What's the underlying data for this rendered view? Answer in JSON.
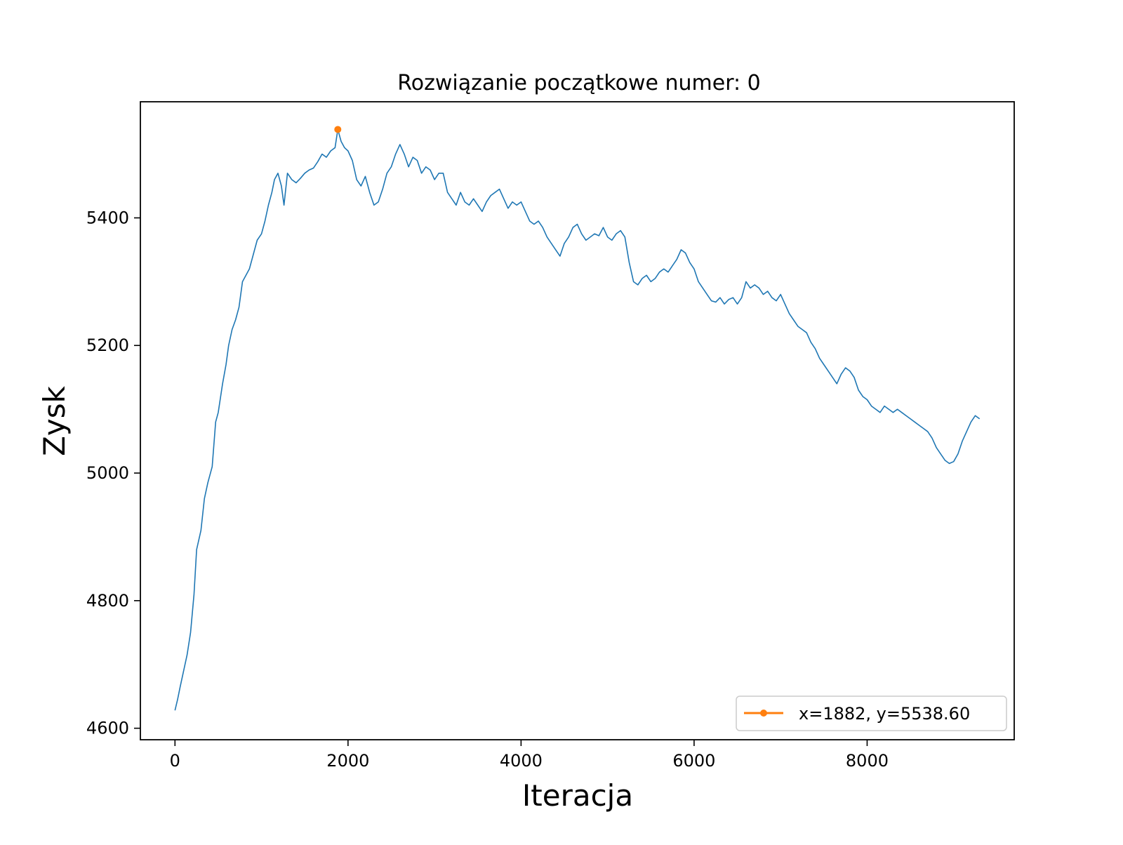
{
  "chart_data": {
    "type": "line",
    "title": "Rozwiązanie początkowe numer: 0",
    "xlabel": "Iteracja",
    "ylabel": "Zysk",
    "xlim": [
      -400,
      9700
    ],
    "ylim": [
      4582,
      5582
    ],
    "x_ticks": [
      0,
      2000,
      4000,
      6000,
      8000
    ],
    "y_ticks": [
      4600,
      4800,
      5000,
      5200,
      5400
    ],
    "grid": false,
    "legend_position": "lower-right",
    "colors": {
      "series": "#1f77b4",
      "marker": "#ff7f0e"
    },
    "series": [
      {
        "name": "",
        "color": "#1f77b4",
        "points": [
          [
            0,
            4628
          ],
          [
            30,
            4645
          ],
          [
            60,
            4665
          ],
          [
            100,
            4690
          ],
          [
            140,
            4715
          ],
          [
            180,
            4750
          ],
          [
            220,
            4810
          ],
          [
            250,
            4880
          ],
          [
            300,
            4910
          ],
          [
            340,
            4960
          ],
          [
            380,
            4985
          ],
          [
            430,
            5010
          ],
          [
            470,
            5080
          ],
          [
            500,
            5095
          ],
          [
            550,
            5140
          ],
          [
            590,
            5170
          ],
          [
            620,
            5200
          ],
          [
            660,
            5225
          ],
          [
            700,
            5240
          ],
          [
            740,
            5260
          ],
          [
            780,
            5300
          ],
          [
            820,
            5310
          ],
          [
            860,
            5320
          ],
          [
            900,
            5340
          ],
          [
            950,
            5365
          ],
          [
            1000,
            5375
          ],
          [
            1040,
            5395
          ],
          [
            1080,
            5420
          ],
          [
            1120,
            5440
          ],
          [
            1150,
            5460
          ],
          [
            1190,
            5470
          ],
          [
            1230,
            5450
          ],
          [
            1260,
            5420
          ],
          [
            1300,
            5470
          ],
          [
            1350,
            5460
          ],
          [
            1400,
            5455
          ],
          [
            1450,
            5462
          ],
          [
            1500,
            5470
          ],
          [
            1550,
            5475
          ],
          [
            1600,
            5478
          ],
          [
            1650,
            5488
          ],
          [
            1700,
            5500
          ],
          [
            1750,
            5495
          ],
          [
            1800,
            5505
          ],
          [
            1850,
            5510
          ],
          [
            1882,
            5538.6
          ],
          [
            1920,
            5520
          ],
          [
            1960,
            5510
          ],
          [
            2000,
            5505
          ],
          [
            2050,
            5490
          ],
          [
            2100,
            5460
          ],
          [
            2150,
            5450
          ],
          [
            2200,
            5465
          ],
          [
            2250,
            5440
          ],
          [
            2300,
            5420
          ],
          [
            2350,
            5425
          ],
          [
            2400,
            5445
          ],
          [
            2450,
            5470
          ],
          [
            2500,
            5480
          ],
          [
            2550,
            5500
          ],
          [
            2600,
            5515
          ],
          [
            2650,
            5500
          ],
          [
            2700,
            5480
          ],
          [
            2750,
            5495
          ],
          [
            2800,
            5490
          ],
          [
            2850,
            5470
          ],
          [
            2900,
            5480
          ],
          [
            2950,
            5475
          ],
          [
            3000,
            5460
          ],
          [
            3050,
            5470
          ],
          [
            3100,
            5470
          ],
          [
            3150,
            5440
          ],
          [
            3200,
            5430
          ],
          [
            3250,
            5420
          ],
          [
            3300,
            5440
          ],
          [
            3350,
            5425
          ],
          [
            3400,
            5420
          ],
          [
            3450,
            5430
          ],
          [
            3500,
            5420
          ],
          [
            3550,
            5410
          ],
          [
            3600,
            5425
          ],
          [
            3650,
            5435
          ],
          [
            3700,
            5440
          ],
          [
            3750,
            5445
          ],
          [
            3800,
            5430
          ],
          [
            3850,
            5415
          ],
          [
            3900,
            5425
          ],
          [
            3950,
            5420
          ],
          [
            4000,
            5425
          ],
          [
            4050,
            5410
          ],
          [
            4100,
            5395
          ],
          [
            4150,
            5390
          ],
          [
            4200,
            5395
          ],
          [
            4250,
            5385
          ],
          [
            4300,
            5370
          ],
          [
            4350,
            5360
          ],
          [
            4400,
            5350
          ],
          [
            4450,
            5340
          ],
          [
            4500,
            5360
          ],
          [
            4550,
            5370
          ],
          [
            4600,
            5385
          ],
          [
            4650,
            5390
          ],
          [
            4700,
            5375
          ],
          [
            4750,
            5365
          ],
          [
            4800,
            5370
          ],
          [
            4850,
            5375
          ],
          [
            4900,
            5372
          ],
          [
            4950,
            5385
          ],
          [
            5000,
            5370
          ],
          [
            5050,
            5365
          ],
          [
            5100,
            5375
          ],
          [
            5150,
            5380
          ],
          [
            5200,
            5370
          ],
          [
            5250,
            5330
          ],
          [
            5300,
            5300
          ],
          [
            5350,
            5295
          ],
          [
            5400,
            5305
          ],
          [
            5450,
            5310
          ],
          [
            5500,
            5300
          ],
          [
            5550,
            5305
          ],
          [
            5600,
            5315
          ],
          [
            5650,
            5320
          ],
          [
            5700,
            5315
          ],
          [
            5750,
            5325
          ],
          [
            5800,
            5335
          ],
          [
            5850,
            5350
          ],
          [
            5900,
            5345
          ],
          [
            5950,
            5330
          ],
          [
            6000,
            5320
          ],
          [
            6050,
            5300
          ],
          [
            6100,
            5290
          ],
          [
            6150,
            5280
          ],
          [
            6200,
            5270
          ],
          [
            6250,
            5268
          ],
          [
            6300,
            5275
          ],
          [
            6350,
            5265
          ],
          [
            6400,
            5272
          ],
          [
            6450,
            5275
          ],
          [
            6500,
            5265
          ],
          [
            6550,
            5275
          ],
          [
            6600,
            5300
          ],
          [
            6650,
            5290
          ],
          [
            6700,
            5295
          ],
          [
            6750,
            5290
          ],
          [
            6800,
            5280
          ],
          [
            6850,
            5285
          ],
          [
            6900,
            5275
          ],
          [
            6950,
            5270
          ],
          [
            7000,
            5280
          ],
          [
            7050,
            5265
          ],
          [
            7100,
            5250
          ],
          [
            7150,
            5240
          ],
          [
            7200,
            5230
          ],
          [
            7250,
            5225
          ],
          [
            7300,
            5220
          ],
          [
            7350,
            5205
          ],
          [
            7400,
            5195
          ],
          [
            7450,
            5180
          ],
          [
            7500,
            5170
          ],
          [
            7550,
            5160
          ],
          [
            7600,
            5150
          ],
          [
            7650,
            5140
          ],
          [
            7700,
            5155
          ],
          [
            7750,
            5165
          ],
          [
            7800,
            5160
          ],
          [
            7850,
            5150
          ],
          [
            7900,
            5130
          ],
          [
            7950,
            5120
          ],
          [
            8000,
            5115
          ],
          [
            8050,
            5105
          ],
          [
            8100,
            5100
          ],
          [
            8150,
            5095
          ],
          [
            8200,
            5105
          ],
          [
            8250,
            5100
          ],
          [
            8300,
            5095
          ],
          [
            8350,
            5100
          ],
          [
            8400,
            5095
          ],
          [
            8450,
            5090
          ],
          [
            8500,
            5085
          ],
          [
            8550,
            5080
          ],
          [
            8600,
            5075
          ],
          [
            8650,
            5070
          ],
          [
            8700,
            5065
          ],
          [
            8750,
            5055
          ],
          [
            8800,
            5040
          ],
          [
            8850,
            5030
          ],
          [
            8900,
            5020
          ],
          [
            8950,
            5015
          ],
          [
            9000,
            5018
          ],
          [
            9050,
            5030
          ],
          [
            9100,
            5050
          ],
          [
            9150,
            5065
          ],
          [
            9200,
            5080
          ],
          [
            9250,
            5090
          ],
          [
            9300,
            5085
          ]
        ]
      }
    ],
    "highlight": {
      "x": 1882,
      "y": 5538.6,
      "legend_label": "x=1882, y=5538.60",
      "color": "#ff7f0e"
    }
  }
}
